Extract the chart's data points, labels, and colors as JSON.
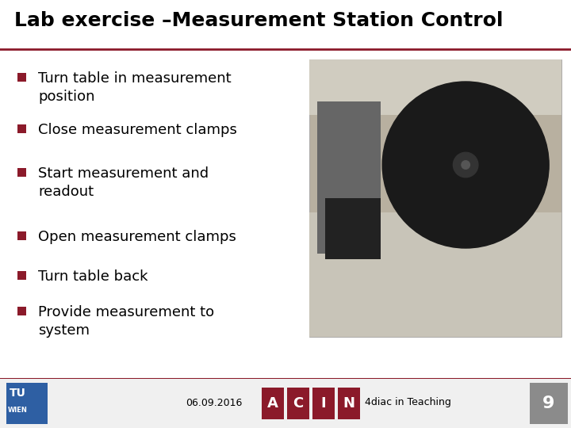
{
  "title": "Lab exercise –Measurement Station Control",
  "title_fontsize": 18,
  "title_fontweight": "bold",
  "title_color": "#000000",
  "separator_color": "#8B1A2A",
  "separator_linewidth": 2,
  "background_color": "#ffffff",
  "bullet_color": "#8B1A2A",
  "bullet_items": [
    "Turn table in measurement\nposition",
    "Close measurement clamps",
    "Start measurement and\nreadout",
    "Open measurement clamps",
    "Turn table back",
    "Provide measurement to\nsystem"
  ],
  "bullet_fontsize": 13,
  "bullet_text_color": "#000000",
  "footer_date": "06.09.2016",
  "footer_text": "4diac in Teaching",
  "footer_page": "9",
  "footer_color": "#000000",
  "footer_fontsize": 9,
  "acin_letters": [
    "A",
    "C",
    "I",
    "N"
  ],
  "acin_box_color": "#8B1A2A",
  "tu_color": "#2E5FA3",
  "page_num_bg": "#8B8B8B",
  "footer_separator_color": "#8B1A2A",
  "img_placeholder_color": "#a0967e",
  "footer_bar_color": "#e8e8e8"
}
